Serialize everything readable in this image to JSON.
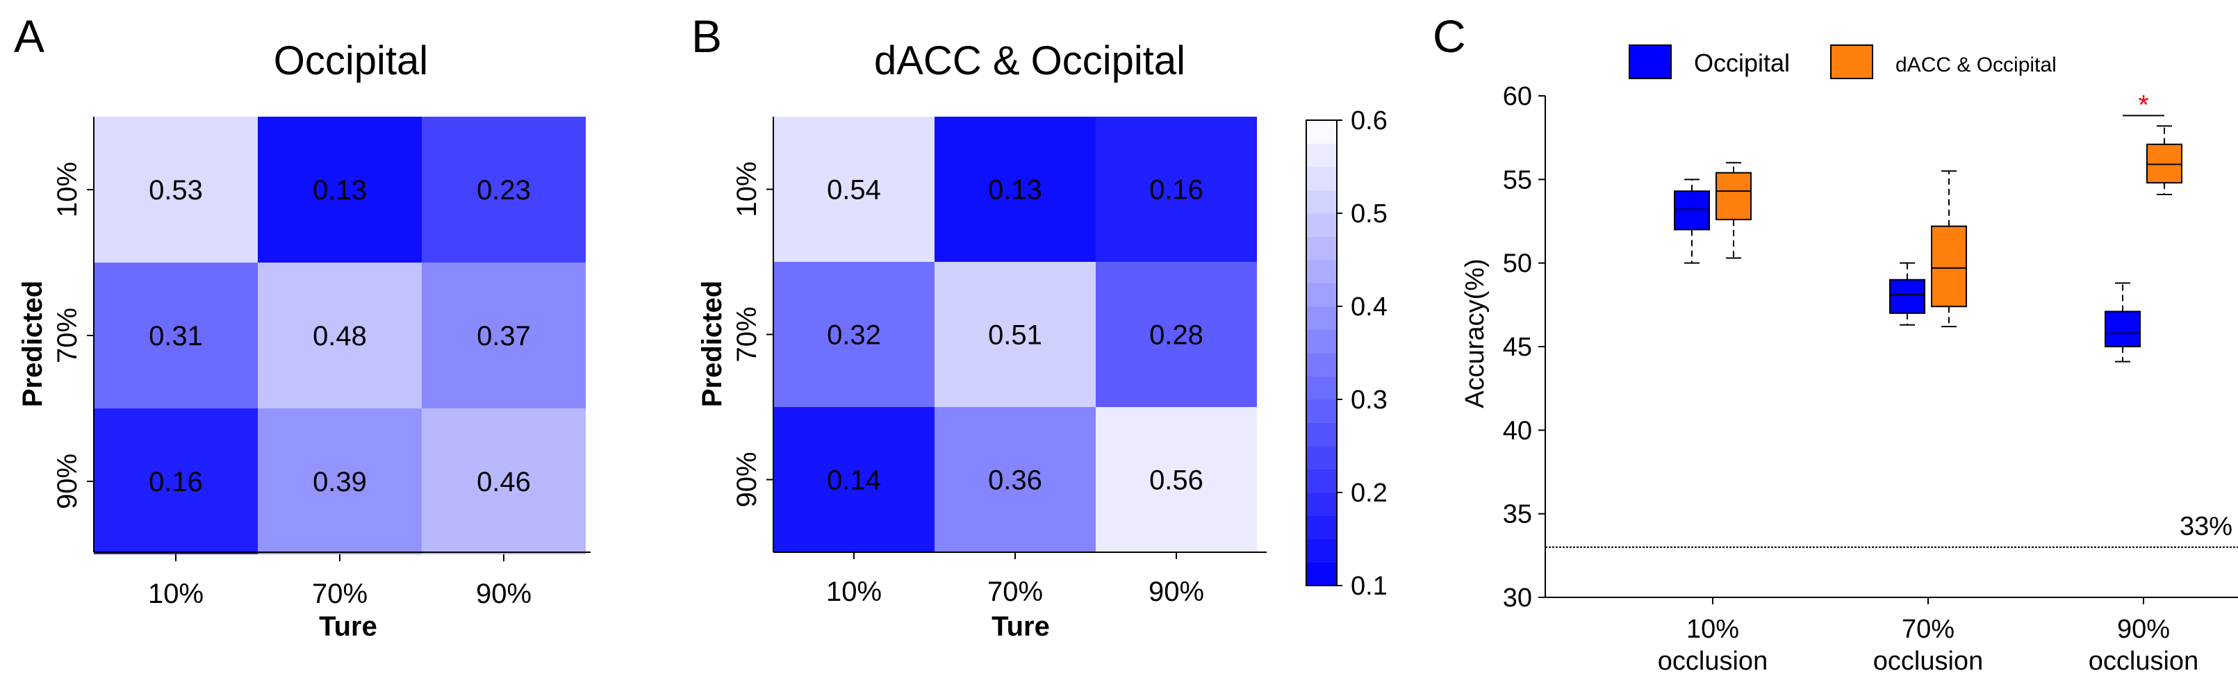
{
  "colors": {
    "low": "#0000ff",
    "high": "#ffffff",
    "occipital": "#0000ff",
    "dacc": "#ff7f0e",
    "star": "#ff0000"
  },
  "chart_data": [
    {
      "type": "heatmap",
      "panel_letter": "A",
      "title": "Occipital",
      "xlabel": "Ture",
      "ylabel": "Predicted",
      "x_categories": [
        "10%",
        "70%",
        "90%"
      ],
      "y_categories": [
        "10%",
        "70%",
        "90%"
      ],
      "values": [
        [
          0.53,
          0.13,
          0.23
        ],
        [
          0.31,
          0.48,
          0.37
        ],
        [
          0.16,
          0.39,
          0.46
        ]
      ],
      "value_labels": [
        [
          "0.53",
          "0.13",
          "0.23"
        ],
        [
          "0.31",
          "0.48",
          "0.37"
        ],
        [
          "0.16",
          "0.39",
          "0.46"
        ]
      ]
    },
    {
      "type": "heatmap",
      "panel_letter": "B",
      "title": "dACC & Occipital",
      "xlabel": "Ture",
      "ylabel": "Predicted",
      "x_categories": [
        "10%",
        "70%",
        "90%"
      ],
      "y_categories": [
        "10%",
        "70%",
        "90%"
      ],
      "values": [
        [
          0.54,
          0.13,
          0.16
        ],
        [
          0.32,
          0.51,
          0.28
        ],
        [
          0.14,
          0.36,
          0.56
        ]
      ],
      "value_labels": [
        [
          "0.54",
          "0.13",
          "0.16"
        ],
        [
          "0.32",
          "0.51",
          "0.28"
        ],
        [
          "0.14",
          "0.36",
          "0.56"
        ]
      ],
      "colorbar": {
        "range": [
          0.1,
          0.6
        ],
        "ticks": [
          "0.1",
          "0.2",
          "0.3",
          "0.4",
          "0.5",
          "0.6"
        ]
      }
    },
    {
      "type": "box",
      "panel_letter": "C",
      "ylabel": "Accuracy(%)",
      "ylim": [
        30,
        60
      ],
      "yticks": [
        "30",
        "35",
        "40",
        "45",
        "50",
        "55",
        "60"
      ],
      "categories": [
        [
          "10%",
          "occlusion"
        ],
        [
          "70%",
          "occlusion"
        ],
        [
          "90%",
          "occlusion"
        ]
      ],
      "legend_position": "top",
      "series": [
        {
          "name": "Occipital",
          "boxes": [
            {
              "min": 50.0,
              "q1": 52.0,
              "median": 53.2,
              "q3": 54.3,
              "max": 55.0
            },
            {
              "min": 46.3,
              "q1": 47.0,
              "median": 48.1,
              "q3": 49.0,
              "max": 50.0
            },
            {
              "min": 44.1,
              "q1": 45.0,
              "median": 45.8,
              "q3": 47.1,
              "max": 48.8
            }
          ]
        },
        {
          "name": "dACC & Occipital",
          "boxes": [
            {
              "min": 50.3,
              "q1": 52.6,
              "median": 54.3,
              "q3": 55.4,
              "max": 56.0
            },
            {
              "min": 46.2,
              "q1": 47.4,
              "median": 49.7,
              "q3": 52.2,
              "max": 55.5
            },
            {
              "min": 54.1,
              "q1": 54.8,
              "median": 55.9,
              "q3": 57.1,
              "max": 58.2
            }
          ]
        }
      ],
      "reference_line": {
        "value": 33,
        "label": "33%"
      },
      "significance": {
        "category_index": 2,
        "label": "*"
      }
    }
  ]
}
